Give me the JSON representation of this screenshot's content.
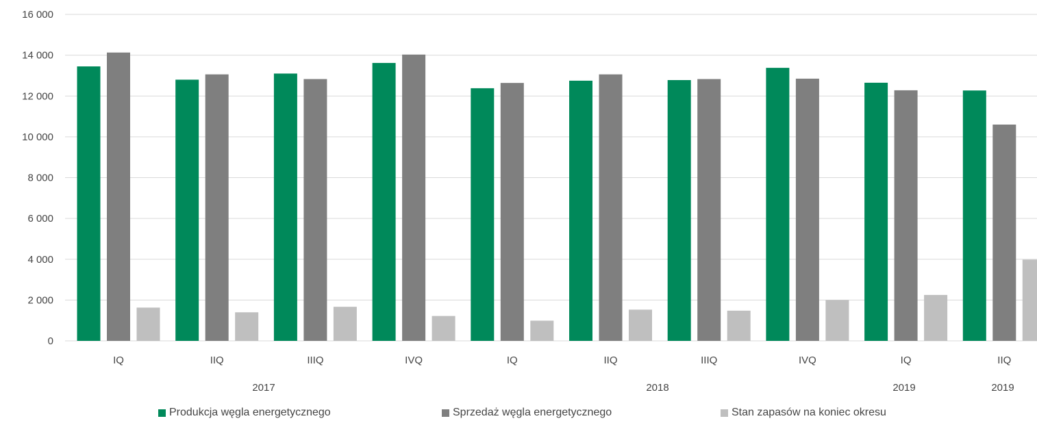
{
  "chart_data": {
    "type": "bar",
    "categories": [
      "IQ",
      "IIQ",
      "IIIQ",
      "IVQ",
      "IQ",
      "IIQ",
      "IIIQ",
      "IVQ",
      "IQ",
      "IIQ"
    ],
    "groups": [
      "2017",
      "2018",
      "2019",
      "2019"
    ],
    "series": [
      {
        "name": "Produkcja węgla energetycznego",
        "color": "#00895A",
        "values": [
          13450,
          12800,
          13100,
          13620,
          12380,
          12750,
          12780,
          13380,
          12650,
          12270
        ]
      },
      {
        "name": "Sprzedaż węgla energetycznego",
        "color": "#7F7F7F",
        "values": [
          14130,
          13060,
          12830,
          14030,
          12640,
          13060,
          12830,
          12850,
          12280,
          10600
        ]
      },
      {
        "name": "Stan zapasów na koniec okresu",
        "color": "#BFBFBF",
        "values": [
          1630,
          1400,
          1670,
          1220,
          990,
          1530,
          1480,
          2000,
          2250,
          3980
        ]
      }
    ],
    "yticks": [
      "0",
      "2 000",
      "4 000",
      "6 000",
      "8 000",
      "10 000",
      "12 000",
      "14 000",
      "16 000"
    ],
    "ylim": [
      0,
      16000
    ],
    "grid": true,
    "legend_position": "bottom"
  }
}
